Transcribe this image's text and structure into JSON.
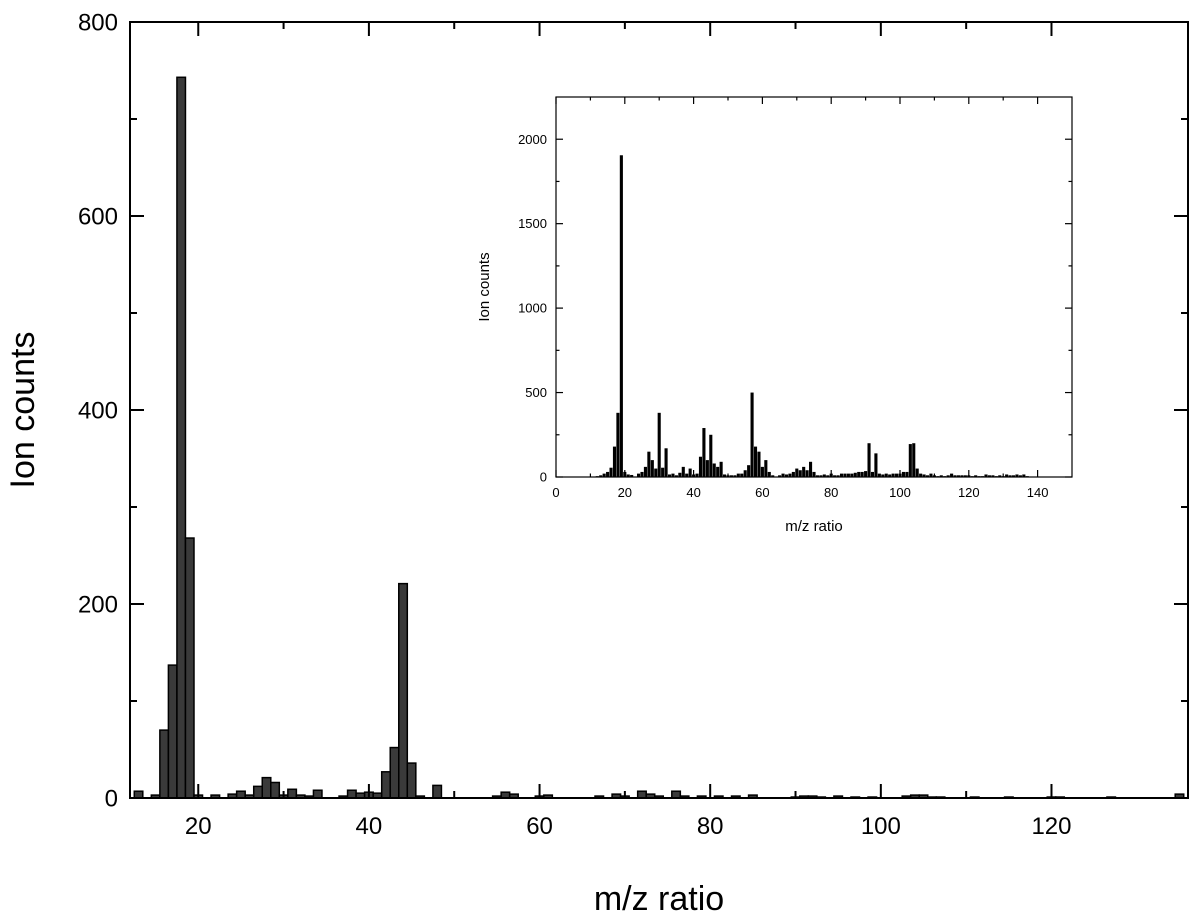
{
  "chart_data": [
    {
      "type": "bar",
      "xlabel": "m/z ratio",
      "ylabel": "Ion counts",
      "xlim": [
        12,
        136
      ],
      "ylim": [
        0,
        800
      ],
      "xticks": [
        20,
        40,
        60,
        80,
        100,
        120
      ],
      "yticks": [
        0,
        200,
        400,
        600,
        800
      ],
      "bar_fill": "#3a3a3a",
      "bar_stroke": "#000000",
      "x": [
        13,
        15,
        16,
        17,
        18,
        19,
        20,
        22,
        24,
        25,
        26,
        27,
        28,
        29,
        30,
        31,
        32,
        33,
        34,
        37,
        38,
        39,
        40,
        41,
        42,
        43,
        44,
        45,
        46,
        48,
        55,
        56,
        57,
        60,
        61,
        67,
        69,
        70,
        72,
        73,
        74,
        76,
        77,
        79,
        81,
        83,
        85,
        90,
        91,
        92,
        93,
        95,
        97,
        99,
        103,
        104,
        105,
        106,
        107,
        111,
        115,
        120,
        121,
        127,
        135
      ],
      "y": [
        7,
        3,
        70,
        137,
        743,
        268,
        3,
        3,
        4,
        7,
        3,
        12,
        21,
        16,
        3,
        9,
        3,
        2,
        8,
        2,
        8,
        5,
        6,
        5,
        27,
        52,
        221,
        36,
        2,
        13,
        2,
        6,
        4,
        2,
        3,
        2,
        4,
        2,
        7,
        4,
        2,
        7,
        2,
        2,
        2,
        2,
        3,
        1,
        2,
        2,
        1,
        2,
        1,
        1,
        2,
        3,
        3,
        1,
        1,
        1,
        1,
        1,
        1,
        1,
        4
      ]
    },
    {
      "type": "bar",
      "xlabel": "m/z ratio",
      "ylabel": "Ion counts",
      "xlim": [
        0,
        150
      ],
      "ylim": [
        0,
        2250
      ],
      "xticks": [
        0,
        20,
        40,
        60,
        80,
        100,
        120,
        140
      ],
      "yticks": [
        0,
        500,
        1000,
        1500,
        2000
      ],
      "bar_fill": "#000000",
      "x": [
        12,
        13,
        14,
        15,
        16,
        17,
        18,
        19,
        20,
        21,
        22,
        24,
        25,
        26,
        27,
        28,
        29,
        30,
        31,
        32,
        33,
        34,
        35,
        36,
        37,
        38,
        39,
        40,
        41,
        42,
        43,
        44,
        45,
        46,
        47,
        48,
        49,
        50,
        51,
        52,
        53,
        54,
        55,
        56,
        57,
        58,
        59,
        60,
        61,
        62,
        63,
        65,
        66,
        67,
        68,
        69,
        70,
        71,
        72,
        73,
        74,
        75,
        76,
        77,
        78,
        79,
        80,
        81,
        82,
        83,
        84,
        85,
        86,
        87,
        88,
        89,
        90,
        91,
        92,
        93,
        94,
        95,
        96,
        97,
        98,
        99,
        100,
        101,
        102,
        103,
        104,
        105,
        106,
        107,
        108,
        109,
        110,
        111,
        112,
        113,
        114,
        115,
        116,
        117,
        118,
        119,
        120,
        121,
        122,
        123,
        124,
        125,
        126,
        127,
        128,
        129,
        130,
        131,
        132,
        133,
        134,
        135,
        136,
        137
      ],
      "y": [
        5,
        10,
        20,
        30,
        55,
        180,
        380,
        1905,
        30,
        15,
        12,
        20,
        30,
        60,
        150,
        100,
        50,
        380,
        55,
        170,
        15,
        20,
        10,
        25,
        60,
        20,
        50,
        15,
        20,
        120,
        290,
        100,
        250,
        80,
        60,
        90,
        15,
        10,
        10,
        10,
        20,
        20,
        40,
        70,
        500,
        180,
        150,
        60,
        100,
        30,
        10,
        10,
        20,
        15,
        20,
        30,
        50,
        40,
        60,
        40,
        90,
        30,
        10,
        10,
        15,
        10,
        20,
        10,
        10,
        20,
        20,
        20,
        20,
        25,
        30,
        30,
        35,
        200,
        30,
        140,
        20,
        15,
        20,
        15,
        20,
        20,
        20,
        30,
        30,
        195,
        200,
        50,
        20,
        15,
        10,
        20,
        10,
        5,
        10,
        5,
        10,
        20,
        10,
        10,
        10,
        10,
        10,
        5,
        10,
        5,
        5,
        15,
        10,
        10,
        5,
        10,
        5,
        15,
        10,
        10,
        15,
        10,
        15,
        5
      ]
    }
  ]
}
